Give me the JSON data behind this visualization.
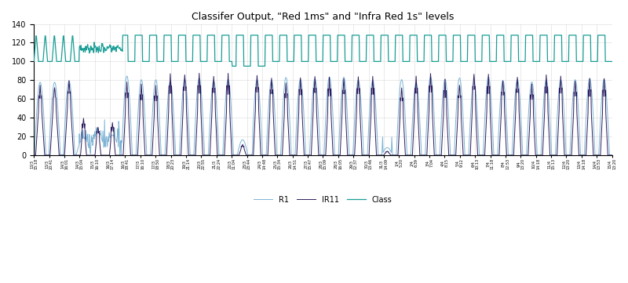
{
  "title": "Classifer Output, \"Red 1ms\" and \"Infra Red 1s\" levels",
  "ylim": [
    0,
    140
  ],
  "yticks": [
    0,
    20,
    40,
    60,
    80,
    100,
    120,
    140
  ],
  "color_R1": "#7cb4d4",
  "color_IR11": "#2d1b5e",
  "color_Class": "#1a9e96",
  "legend_labels": [
    "R1",
    "IR11",
    "Class"
  ],
  "background_color": "#ffffff",
  "grid_color": "#d0d0d0",
  "tick_labels": [
    "13/3\n15:18",
    "13/3\n20:41",
    "14/3\n16:01",
    "14/3\n15:04",
    "15/3\n16:10",
    "16/3\n17:14",
    "16/3\n18:41",
    "17/3\n16:10",
    "17/3\n18:50",
    "18/3\n20:23",
    "19/3\n21:14",
    "20/3\n22:55",
    "21/3\n22:24",
    "22/3\n11:04",
    "23/3\n23:44",
    "24/3\n14:48",
    "25/3\n15:34",
    "26/3\n14:51",
    "27/3\n15:47",
    "28/3\n15:09",
    "28/3\n16:05",
    "29/3\n12:37",
    "30/3\n13:46",
    "31/3\n14:09",
    "1/4\n5:20",
    "2/4\n6:39",
    "3/4\n7:04",
    "4/4\n8:15",
    "5/4\n9:12",
    "6/4\n10:13",
    "7/4\n11:18",
    "8/4\n12:53",
    "9/4\n13:20",
    "10/4\n14:18",
    "11/4\n15:13",
    "12/4\n13:20",
    "13/4\n14:18",
    "14/4\n13:53",
    "15/4\n13:20"
  ]
}
